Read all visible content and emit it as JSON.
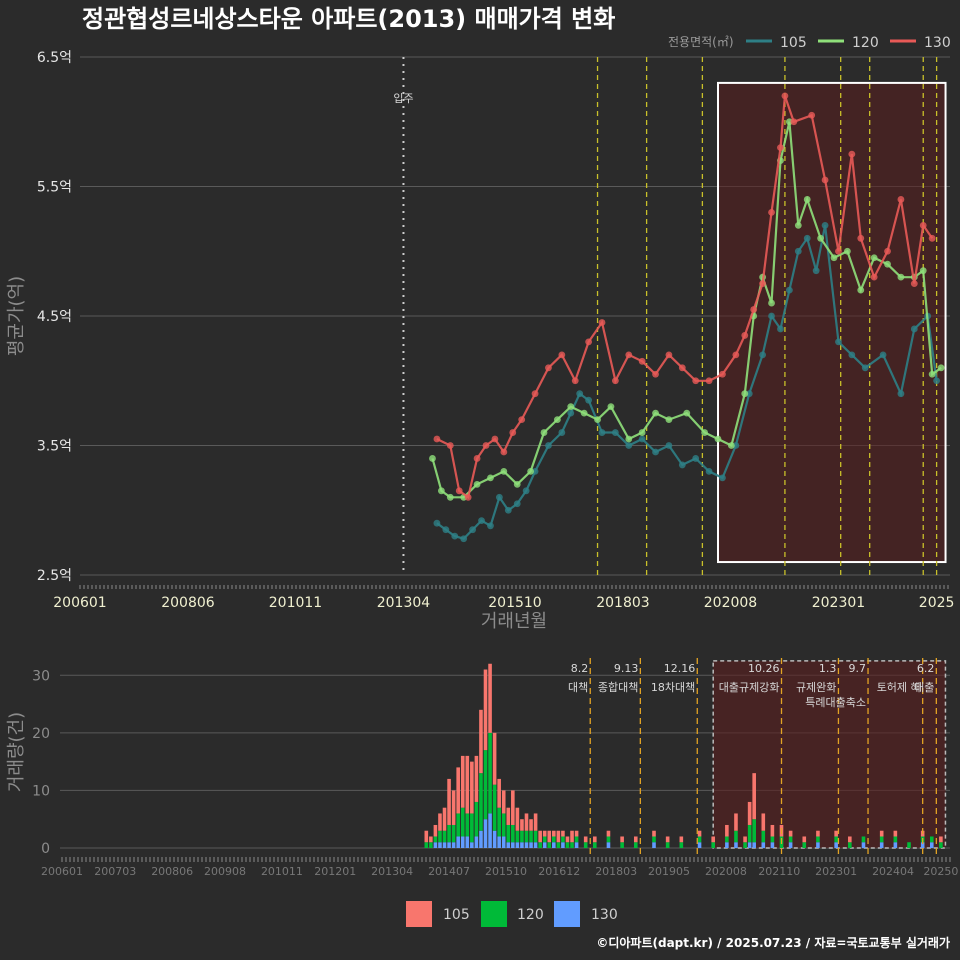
{
  "chart_data": {
    "type": "line",
    "title": "정관협성르네상스타운 아파트(2013) 매매가격 변화",
    "xlabel": "거래년월",
    "ylabel": "평균가(억)",
    "legend_title": "전용면적(㎡)",
    "ylim": [
      2.5,
      6.5
    ],
    "y_ticks": [
      "2.5억",
      "3.5억",
      "4.5억",
      "5.5억",
      "6.5억"
    ],
    "y_tick_values": [
      2.5,
      3.5,
      4.5,
      5.5,
      6.5
    ],
    "x_ticks": [
      "200601",
      "200806",
      "201011",
      "201304",
      "201510",
      "201803",
      "202008",
      "202301",
      "2025"
    ],
    "x_tick_values": [
      2006.0,
      2008.42,
      2010.83,
      2013.25,
      2015.75,
      2018.17,
      2020.58,
      2023.0,
      2025.2
    ],
    "x_range": [
      2006.0,
      2025.5
    ],
    "move_in": {
      "label": "입주",
      "x": 2013.25
    },
    "highlight_range": [
      2020.3,
      2025.4
    ],
    "event_lines": [
      2017.6,
      2018.7,
      2019.95,
      2021.8,
      2023.05,
      2023.7,
      2024.9,
      2025.2
    ],
    "series": [
      {
        "name": "105",
        "color": "#2e7f86",
        "points": [
          [
            2014.0,
            2.9
          ],
          [
            2014.2,
            2.85
          ],
          [
            2014.4,
            2.8
          ],
          [
            2014.6,
            2.78
          ],
          [
            2014.8,
            2.85
          ],
          [
            2015.0,
            2.92
          ],
          [
            2015.2,
            2.88
          ],
          [
            2015.4,
            3.1
          ],
          [
            2015.6,
            3.0
          ],
          [
            2015.8,
            3.05
          ],
          [
            2016.0,
            3.15
          ],
          [
            2016.2,
            3.3
          ],
          [
            2016.5,
            3.5
          ],
          [
            2016.8,
            3.6
          ],
          [
            2017.0,
            3.75
          ],
          [
            2017.2,
            3.9
          ],
          [
            2017.4,
            3.85
          ],
          [
            2017.7,
            3.6
          ],
          [
            2018.0,
            3.6
          ],
          [
            2018.3,
            3.5
          ],
          [
            2018.6,
            3.55
          ],
          [
            2018.9,
            3.45
          ],
          [
            2019.2,
            3.5
          ],
          [
            2019.5,
            3.35
          ],
          [
            2019.8,
            3.4
          ],
          [
            2020.1,
            3.3
          ],
          [
            2020.4,
            3.25
          ],
          [
            2020.7,
            3.5
          ],
          [
            2021.0,
            3.9
          ],
          [
            2021.3,
            4.2
          ],
          [
            2021.5,
            4.5
          ],
          [
            2021.7,
            4.4
          ],
          [
            2021.9,
            4.7
          ],
          [
            2022.1,
            5.0
          ],
          [
            2022.3,
            5.1
          ],
          [
            2022.5,
            4.85
          ],
          [
            2022.7,
            5.2
          ],
          [
            2023.0,
            4.3
          ],
          [
            2023.3,
            4.2
          ],
          [
            2023.6,
            4.1
          ],
          [
            2024.0,
            4.2
          ],
          [
            2024.4,
            3.9
          ],
          [
            2024.7,
            4.4
          ],
          [
            2025.0,
            4.5
          ],
          [
            2025.2,
            4.0
          ]
        ]
      },
      {
        "name": "120",
        "color": "#8fe07a",
        "points": [
          [
            2013.9,
            3.4
          ],
          [
            2014.1,
            3.15
          ],
          [
            2014.3,
            3.1
          ],
          [
            2014.6,
            3.1
          ],
          [
            2014.9,
            3.2
          ],
          [
            2015.2,
            3.25
          ],
          [
            2015.5,
            3.3
          ],
          [
            2015.8,
            3.2
          ],
          [
            2016.1,
            3.3
          ],
          [
            2016.4,
            3.6
          ],
          [
            2016.7,
            3.7
          ],
          [
            2017.0,
            3.8
          ],
          [
            2017.3,
            3.75
          ],
          [
            2017.6,
            3.7
          ],
          [
            2017.9,
            3.8
          ],
          [
            2018.3,
            3.55
          ],
          [
            2018.6,
            3.6
          ],
          [
            2018.9,
            3.75
          ],
          [
            2019.2,
            3.7
          ],
          [
            2019.6,
            3.75
          ],
          [
            2020.0,
            3.6
          ],
          [
            2020.3,
            3.55
          ],
          [
            2020.6,
            3.5
          ],
          [
            2020.9,
            3.9
          ],
          [
            2021.1,
            4.5
          ],
          [
            2021.3,
            4.8
          ],
          [
            2021.5,
            4.6
          ],
          [
            2021.7,
            5.7
          ],
          [
            2021.9,
            6.0
          ],
          [
            2022.1,
            5.2
          ],
          [
            2022.3,
            5.4
          ],
          [
            2022.6,
            5.1
          ],
          [
            2022.9,
            4.95
          ],
          [
            2023.2,
            5.0
          ],
          [
            2023.5,
            4.7
          ],
          [
            2023.8,
            4.95
          ],
          [
            2024.1,
            4.9
          ],
          [
            2024.4,
            4.8
          ],
          [
            2024.7,
            4.8
          ],
          [
            2024.9,
            4.85
          ],
          [
            2025.1,
            4.05
          ],
          [
            2025.3,
            4.1
          ]
        ]
      },
      {
        "name": "130",
        "color": "#e85a57",
        "points": [
          [
            2014.0,
            3.55
          ],
          [
            2014.3,
            3.5
          ],
          [
            2014.5,
            3.15
          ],
          [
            2014.7,
            3.1
          ],
          [
            2014.9,
            3.4
          ],
          [
            2015.1,
            3.5
          ],
          [
            2015.3,
            3.55
          ],
          [
            2015.5,
            3.45
          ],
          [
            2015.7,
            3.6
          ],
          [
            2015.9,
            3.7
          ],
          [
            2016.2,
            3.9
          ],
          [
            2016.5,
            4.1
          ],
          [
            2016.8,
            4.2
          ],
          [
            2017.1,
            4.0
          ],
          [
            2017.4,
            4.3
          ],
          [
            2017.7,
            4.45
          ],
          [
            2018.0,
            4.0
          ],
          [
            2018.3,
            4.2
          ],
          [
            2018.6,
            4.15
          ],
          [
            2018.9,
            4.05
          ],
          [
            2019.2,
            4.2
          ],
          [
            2019.5,
            4.1
          ],
          [
            2019.8,
            4.0
          ],
          [
            2020.1,
            4.0
          ],
          [
            2020.4,
            4.05
          ],
          [
            2020.7,
            4.2
          ],
          [
            2020.9,
            4.35
          ],
          [
            2021.1,
            4.55
          ],
          [
            2021.3,
            4.75
          ],
          [
            2021.5,
            5.3
          ],
          [
            2021.7,
            5.8
          ],
          [
            2021.8,
            6.2
          ],
          [
            2022.0,
            6.0
          ],
          [
            2022.4,
            6.05
          ],
          [
            2022.7,
            5.55
          ],
          [
            2023.0,
            5.0
          ],
          [
            2023.3,
            5.75
          ],
          [
            2023.5,
            5.1
          ],
          [
            2023.8,
            4.8
          ],
          [
            2024.1,
            5.0
          ],
          [
            2024.4,
            5.4
          ],
          [
            2024.7,
            4.75
          ],
          [
            2024.9,
            5.2
          ],
          [
            2025.1,
            5.1
          ]
        ]
      }
    ],
    "volume": {
      "ylabel": "거래량(건)",
      "ylim": [
        0,
        33
      ],
      "y_ticks": [
        "0",
        "10",
        "20",
        "30"
      ],
      "y_tick_values": [
        0,
        10,
        20,
        30
      ],
      "x_ticks": [
        "200601",
        "200703",
        "200806",
        "200908",
        "201011",
        "201201",
        "201304",
        "201407",
        "201510",
        "201612",
        "201803",
        "201905",
        "202008",
        "202110",
        "202301",
        "202404",
        "20250"
      ],
      "x_tick_values": [
        2006.0,
        2007.17,
        2008.42,
        2009.58,
        2010.83,
        2012.0,
        2013.25,
        2014.5,
        2015.75,
        2016.92,
        2018.17,
        2019.33,
        2020.58,
        2021.75,
        2023.0,
        2024.25,
        2025.3
      ],
      "highlight_range": [
        2020.3,
        2025.4
      ],
      "series": [
        {
          "name": "105",
          "color": "#f8766d"
        },
        {
          "name": "120",
          "color": "#00ba38"
        },
        {
          "name": "130",
          "color": "#619cff"
        }
      ],
      "months": [
        2014.0,
        2014.1,
        2014.2,
        2014.3,
        2014.4,
        2014.5,
        2014.6,
        2014.7,
        2014.8,
        2014.9,
        2015.0,
        2015.1,
        2015.2,
        2015.3,
        2015.4,
        2015.5,
        2015.6,
        2015.7,
        2015.8,
        2015.9,
        2016.0,
        2016.1,
        2016.2,
        2016.3,
        2016.4,
        2016.5,
        2016.6,
        2016.7,
        2016.8,
        2016.9,
        2017.0,
        2017.1,
        2017.2,
        2017.3,
        2017.5,
        2017.7,
        2018.0,
        2018.3,
        2018.6,
        2019.0,
        2019.3,
        2019.6,
        2020.0,
        2020.3,
        2020.6,
        2020.8,
        2021.0,
        2021.1,
        2021.2,
        2021.4,
        2021.6,
        2021.8,
        2022.0,
        2022.3,
        2022.6,
        2023.0,
        2023.3,
        2023.6,
        2024.0,
        2024.3,
        2024.6,
        2024.9,
        2025.1,
        2025.3
      ],
      "values_105": [
        2,
        1,
        2,
        3,
        4,
        8,
        6,
        8,
        9,
        10,
        9,
        8,
        11,
        14,
        12,
        9,
        5,
        4,
        3,
        6,
        4,
        2,
        3,
        2,
        3,
        2,
        1,
        2,
        1,
        2,
        1,
        1,
        2,
        1,
        1,
        1,
        1,
        1,
        1,
        1,
        1,
        1,
        1,
        1,
        2,
        3,
        1,
        4,
        8,
        3,
        2,
        2,
        1,
        1,
        1,
        1,
        1,
        0,
        1,
        1,
        0,
        1,
        0,
        1
      ],
      "values_120": [
        1,
        1,
        1,
        2,
        2,
        3,
        3,
        4,
        5,
        4,
        5,
        6,
        10,
        12,
        14,
        8,
        5,
        4,
        3,
        3,
        2,
        2,
        2,
        2,
        2,
        1,
        1,
        1,
        1,
        1,
        1,
        1,
        1,
        1,
        1,
        1,
        1,
        1,
        1,
        1,
        1,
        1,
        1,
        1,
        1,
        2,
        1,
        3,
        4,
        2,
        1,
        2,
        1,
        1,
        1,
        1,
        1,
        1,
        1,
        1,
        1,
        1,
        1,
        1
      ],
      "values_130": [
        0,
        0,
        1,
        1,
        1,
        1,
        1,
        2,
        2,
        2,
        1,
        2,
        3,
        5,
        6,
        3,
        2,
        2,
        1,
        1,
        1,
        1,
        1,
        1,
        1,
        0,
        1,
        0,
        1,
        0,
        1,
        0,
        0,
        1,
        0,
        0,
        1,
        0,
        0,
        1,
        0,
        0,
        1,
        0,
        1,
        1,
        0,
        1,
        1,
        1,
        1,
        0,
        1,
        0,
        1,
        1,
        0,
        1,
        1,
        1,
        0,
        1,
        1,
        0
      ],
      "events": [
        {
          "x": 2017.6,
          "date": "8.2",
          "label": "대책"
        },
        {
          "x": 2018.7,
          "date": "9.13",
          "label": "종합대책"
        },
        {
          "x": 2019.95,
          "date": "12.16",
          "label": "18차대책"
        },
        {
          "x": 2021.8,
          "date": "10.26",
          "label": "대출규제강화"
        },
        {
          "x": 2023.05,
          "date": "1.3",
          "label": "규제완화"
        },
        {
          "x": 2023.7,
          "date": "9.7",
          "label": "특례대출축소"
        },
        {
          "x": 2024.9,
          "date": "",
          "label": "토허제 해"
        },
        {
          "x": 2025.2,
          "date": "6.2",
          "label": "대출"
        }
      ]
    },
    "credit": "©디아파트(dapt.kr) / 2025.07.23 / 자료=국토교통부 실거래가"
  }
}
